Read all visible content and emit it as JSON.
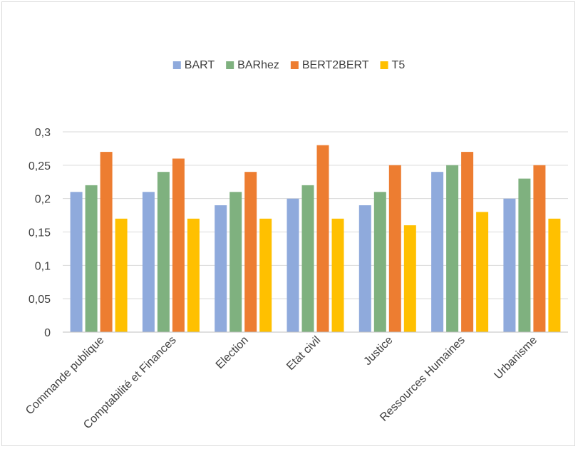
{
  "chart_data": {
    "type": "bar",
    "title": "",
    "xlabel": "",
    "ylabel": "",
    "categories": [
      "Commande publique",
      "Comptabilité et Finances",
      "Election",
      "Etat civil",
      "Justice",
      "Ressources Humaines",
      "Urbanisme"
    ],
    "series": [
      {
        "name": "BART",
        "color": "#8faadc",
        "values": [
          0.21,
          0.21,
          0.19,
          0.2,
          0.19,
          0.24,
          0.2
        ]
      },
      {
        "name": "BARhez",
        "color": "#7fb17f",
        "values": [
          0.22,
          0.24,
          0.21,
          0.22,
          0.21,
          0.25,
          0.23
        ]
      },
      {
        "name": "BERT2BERT",
        "color": "#ed7d31",
        "values": [
          0.27,
          0.26,
          0.24,
          0.28,
          0.25,
          0.27,
          0.25
        ]
      },
      {
        "name": "T5",
        "color": "#ffc000",
        "values": [
          0.17,
          0.17,
          0.17,
          0.17,
          0.16,
          0.18,
          0.17
        ]
      }
    ],
    "ylim": [
      0,
      0.3
    ],
    "yticks": [
      "0",
      "0,05",
      "0,1",
      "0,15",
      "0,2",
      "0,25",
      "0,3"
    ],
    "grid": true,
    "legend_position": "top-center"
  }
}
